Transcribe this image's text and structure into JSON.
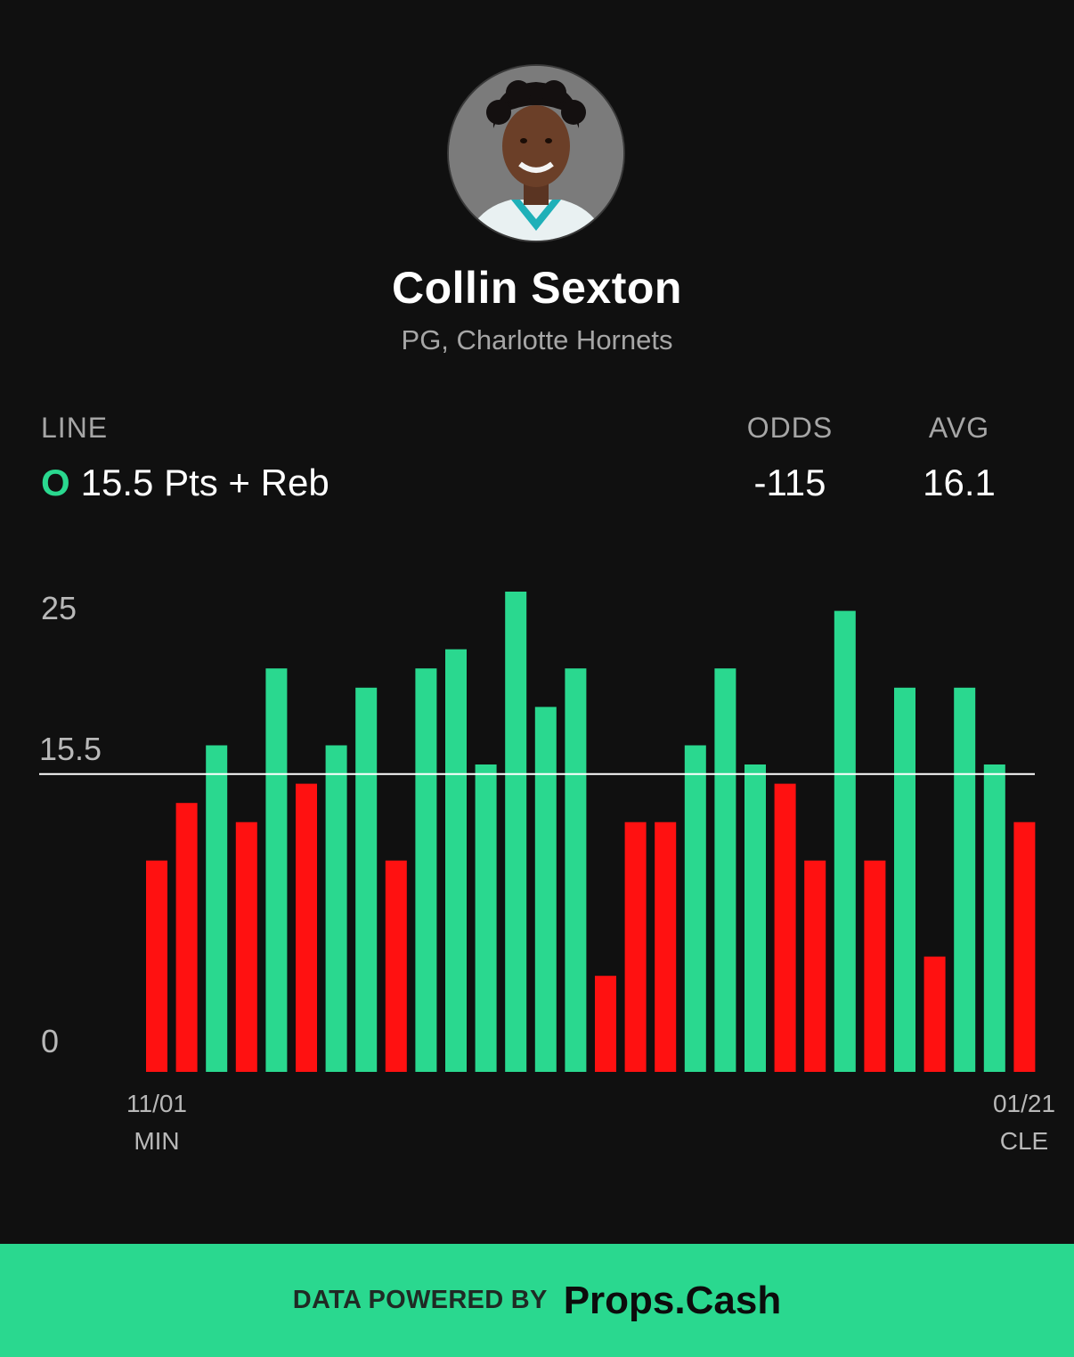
{
  "player": {
    "name": "Collin Sexton",
    "subtitle": "PG, Charlotte Hornets"
  },
  "stats": {
    "line_label": "LINE",
    "odds_label": "ODDS",
    "avg_label": "AVG",
    "line_side": "O",
    "line_value": "15.5 Pts + Reb",
    "odds_value": "-115",
    "avg_value": "16.1"
  },
  "colors": {
    "over": "#2ad88f",
    "under": "#ff1111",
    "background": "#101010"
  },
  "chart_data": {
    "type": "bar",
    "ylim": [
      0,
      25
    ],
    "y_ticks": [
      "25",
      "15.5",
      "0"
    ],
    "line": 15.5,
    "line_label": "15.5",
    "values": [
      11,
      14,
      17,
      13,
      21,
      15,
      17,
      20,
      11,
      21,
      22,
      16,
      25,
      19,
      21,
      5,
      13,
      13,
      17,
      21,
      16,
      15,
      11,
      24,
      11,
      20,
      6,
      20,
      16,
      13
    ],
    "first_label": {
      "date": "11/01",
      "opponent": "MIN"
    },
    "last_label": {
      "date": "01/21",
      "opponent": "CLE"
    }
  },
  "footer": {
    "powered_by": "DATA POWERED BY",
    "brand": "Props.Cash"
  }
}
